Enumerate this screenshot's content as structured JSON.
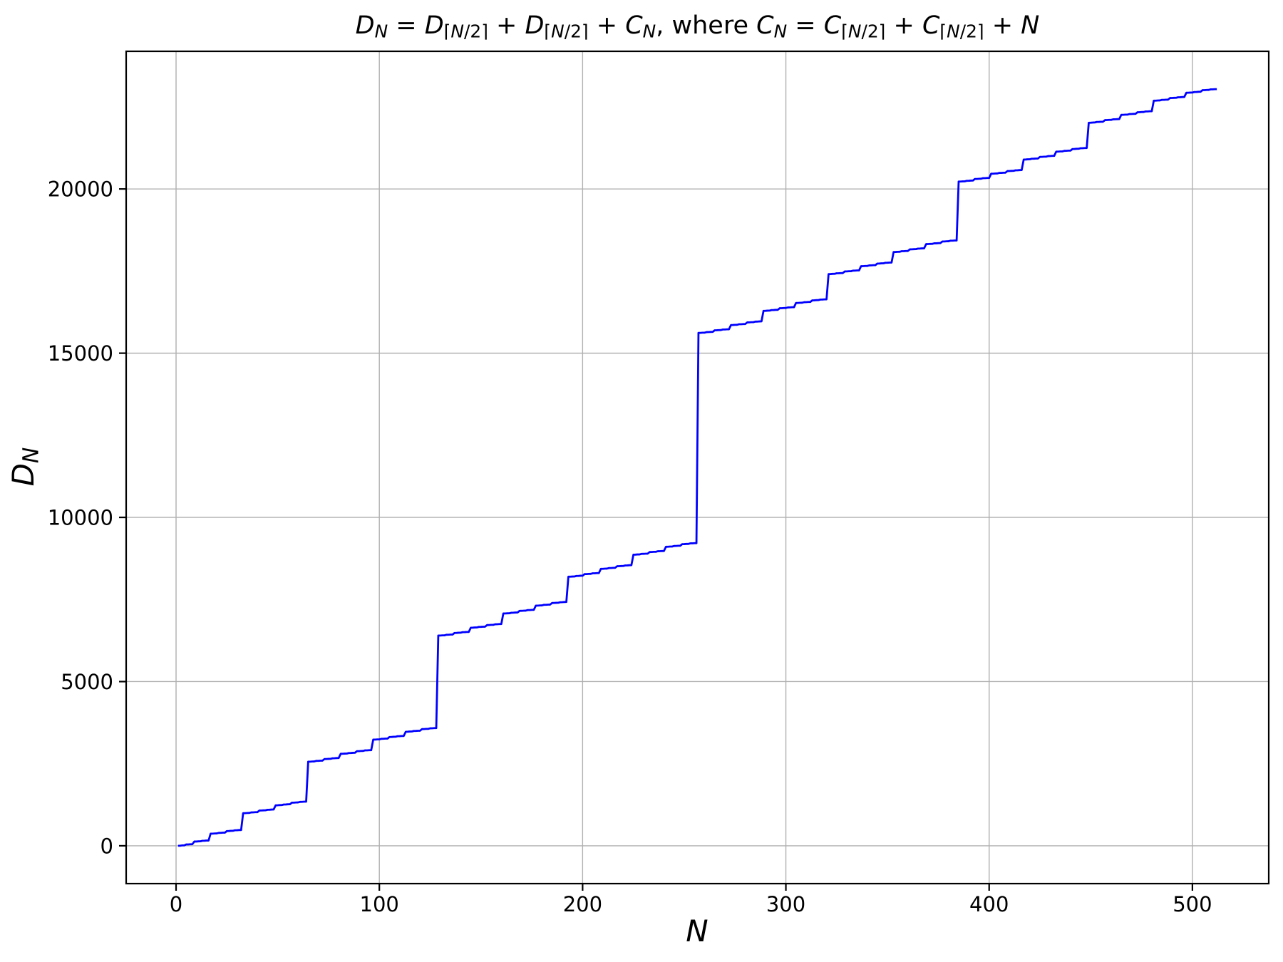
{
  "chart_data": {
    "type": "line",
    "subtype": "staircase polyline through integer points",
    "title": "D_N = D_⌈N/2⌉ + D_⌈N/2⌉ + C_N, where C_N = C_⌈N/2⌉ + C_⌈N/2⌉ + N",
    "xlabel": "N",
    "ylabel": "D_N",
    "line_color": "#0000ff",
    "grid": true,
    "grid_color": "#b0b0b0",
    "x_ticks": [
      0,
      100,
      200,
      300,
      400,
      500
    ],
    "y_ticks": [
      0,
      5000,
      10000,
      15000,
      20000
    ],
    "xlim": [
      -24.55,
      537.55
    ],
    "ylim": [
      -1152,
      24192
    ],
    "n_min": 1,
    "n_max": 512,
    "recurrence": {
      "D": "D_N = D_ceil(N/2) + D_ceil(N/2) + C_N",
      "C": "C_N = C_ceil(N/2) + C_ceil(N/2) + N",
      "base": {
        "C_1": 0,
        "D_1": 0
      }
    },
    "key_points": [
      [
        1,
        0
      ],
      [
        2,
        2
      ],
      [
        3,
        11
      ],
      [
        4,
        12
      ],
      [
        8,
        48
      ],
      [
        16,
        160
      ],
      [
        32,
        480
      ],
      [
        33,
        993
      ],
      [
        64,
        1344
      ],
      [
        65,
        2561
      ],
      [
        96,
        2912
      ],
      [
        97,
        3233
      ],
      [
        128,
        3584
      ],
      [
        129,
        6401
      ],
      [
        160,
        6752
      ],
      [
        161,
        7073
      ],
      [
        192,
        7424
      ],
      [
        193,
        8193
      ],
      [
        224,
        8544
      ],
      [
        225,
        8865
      ],
      [
        256,
        9216
      ],
      [
        257,
        15617
      ],
      [
        320,
        16640
      ],
      [
        321,
        17409
      ],
      [
        384,
        18432
      ],
      [
        385,
        20225
      ],
      [
        448,
        21248
      ],
      [
        449,
        22017
      ],
      [
        512,
        23040
      ]
    ],
    "title_segments": [
      {
        "t": "D",
        "s": "i"
      },
      {
        "t": "N",
        "s": "is"
      },
      {
        "t": " = ",
        "s": "n"
      },
      {
        "t": "D",
        "s": "i"
      },
      {
        "t": "⌈",
        "s": "s"
      },
      {
        "t": "N",
        "s": "is"
      },
      {
        "t": "/2",
        "s": "s"
      },
      {
        "t": "⌉",
        "s": "s"
      },
      {
        "t": " + ",
        "s": "n"
      },
      {
        "t": "D",
        "s": "i"
      },
      {
        "t": "⌈",
        "s": "s"
      },
      {
        "t": "N",
        "s": "is"
      },
      {
        "t": "/2",
        "s": "s"
      },
      {
        "t": "⌉",
        "s": "s"
      },
      {
        "t": " + ",
        "s": "n"
      },
      {
        "t": "C",
        "s": "i"
      },
      {
        "t": "N",
        "s": "is"
      },
      {
        "t": ", where ",
        "s": "n"
      },
      {
        "t": "C",
        "s": "i"
      },
      {
        "t": "N",
        "s": "is"
      },
      {
        "t": " = ",
        "s": "n"
      },
      {
        "t": "C",
        "s": "i"
      },
      {
        "t": "⌈",
        "s": "s"
      },
      {
        "t": "N",
        "s": "is"
      },
      {
        "t": "/2",
        "s": "s"
      },
      {
        "t": "⌉",
        "s": "s"
      },
      {
        "t": " + ",
        "s": "n"
      },
      {
        "t": "C",
        "s": "i"
      },
      {
        "t": "⌈",
        "s": "s"
      },
      {
        "t": "N",
        "s": "is"
      },
      {
        "t": "/2",
        "s": "s"
      },
      {
        "t": "⌉",
        "s": "s"
      },
      {
        "t": " + ",
        "s": "n"
      },
      {
        "t": "N",
        "s": "i"
      }
    ],
    "xlabel_segments": [
      {
        "t": "N",
        "s": "i"
      }
    ],
    "ylabel_segments": [
      {
        "t": "D",
        "s": "i"
      },
      {
        "t": "N",
        "s": "is"
      }
    ]
  }
}
